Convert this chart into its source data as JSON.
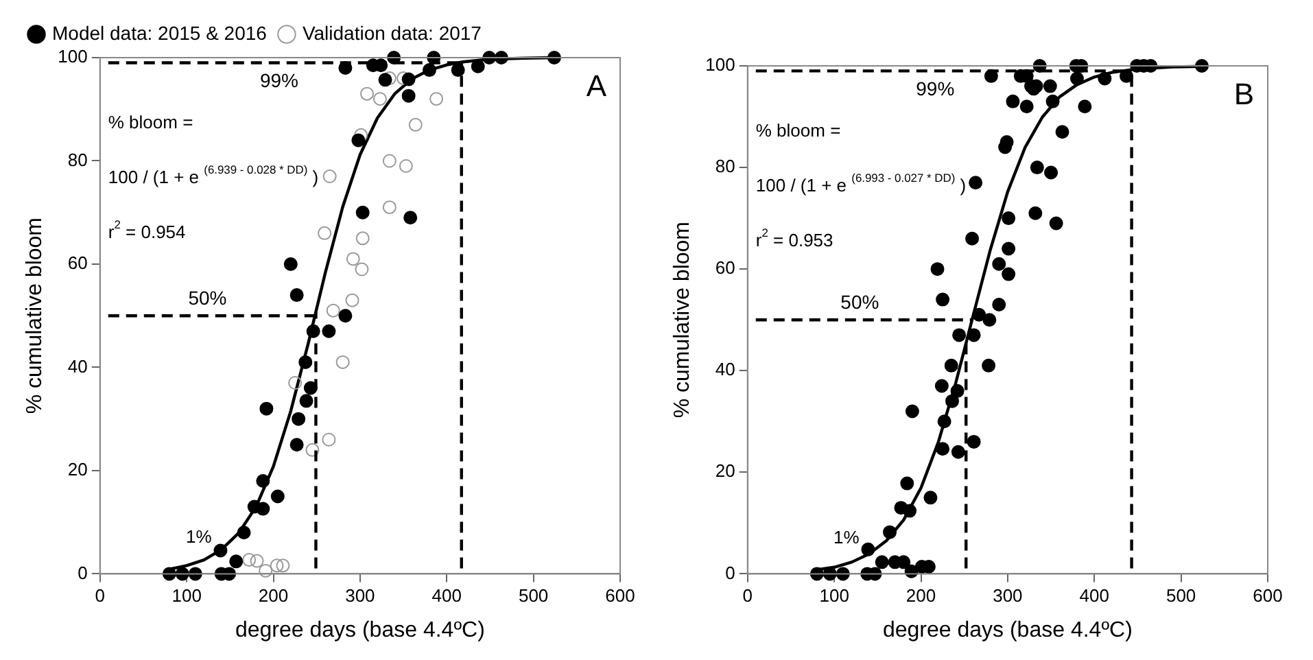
{
  "chart_data": [
    {
      "type": "scatter",
      "xlabel": "degree days (base 4.4ºC)",
      "ylabel": "% cumulative bloom",
      "xlim": [
        0,
        600
      ],
      "ylim": [
        0,
        100
      ],
      "xticks": [
        0,
        100,
        200,
        300,
        400,
        500,
        600
      ],
      "yticks": [
        0,
        20,
        40,
        60,
        80,
        100
      ],
      "grid": false,
      "legend": "top left",
      "series": [
        {
          "name": "Model data: 2015 & 2016",
          "color": "#000000",
          "marker": "circle",
          "x": [
            80,
            95,
            110,
            140,
            149,
            139,
            157,
            166,
            178,
            188,
            188,
            192,
            205,
            220,
            227,
            229,
            227,
            238,
            237,
            243,
            246,
            264,
            283,
            298,
            303,
            283,
            315,
            324,
            329,
            339,
            356,
            356,
            358,
            385,
            380,
            413,
            436,
            449,
            463,
            524
          ],
          "values": [
            0,
            0,
            0,
            0,
            0,
            4.5,
            2.4,
            8,
            13,
            18,
            12.6,
            32,
            15,
            60,
            54,
            30,
            25,
            33.5,
            41,
            36,
            47,
            47,
            50,
            84,
            70,
            98,
            98.5,
            98.5,
            95.7,
            100,
            95.8,
            92.6,
            69,
            100,
            97.6,
            97.6,
            98.3,
            100,
            100,
            100
          ]
        },
        {
          "name": "Validation data: 2017",
          "color": "#9a9a9a",
          "marker": "circle",
          "x": [
            172,
            181,
            191,
            204,
            211,
            225,
            245,
            264,
            259,
            265,
            269,
            280,
            291,
            292,
            302,
            303,
            301,
            308,
            323,
            334,
            334,
            334,
            353,
            350,
            364,
            388
          ],
          "values": [
            2.7,
            2.5,
            0.6,
            1.6,
            1.6,
            37,
            24,
            26,
            66,
            77,
            51,
            41,
            53,
            61,
            59,
            65,
            85,
            93,
            92,
            96,
            80,
            71,
            79,
            96,
            87,
            92
          ]
        },
        {
          "type": "line",
          "color": "#000000",
          "line_style": "solid",
          "marker": "none",
          "x": [
            80,
            100,
            120,
            140,
            160,
            180,
            200,
            220,
            240,
            260,
            280,
            300,
            320,
            340,
            360,
            380,
            400,
            420,
            450,
            490,
            525
          ],
          "values": [
            0.9,
            1.6,
            2.7,
            4.7,
            7.9,
            13.0,
            20.8,
            31.5,
            44.5,
            58.4,
            71.1,
            81.2,
            88.3,
            93.0,
            95.9,
            97.6,
            98.6,
            99.2,
            99.7,
            99.9,
            100.0
          ]
        }
      ],
      "ref_lines": [
        {
          "axis": "y",
          "value": 99,
          "label": "99%"
        },
        {
          "axis": "y",
          "value": 50,
          "label": "50%"
        },
        {
          "axis": "x",
          "value": 249
        },
        {
          "axis": "x",
          "value": 417
        }
      ],
      "annotations": [
        "% bloom =",
        "100 / (1 + e $^{(6.939 - 0.028 * DD)}$ )",
        "r$^{2}$ = 0.954",
        "1%",
        "A"
      ]
    },
    {
      "type": "scatter",
      "xlabel": "degree days (base 4.4ºC)",
      "ylabel": "% cumulative bloom",
      "xlim": [
        0,
        600
      ],
      "ylim": [
        0,
        100
      ],
      "xticks": [
        0,
        100,
        200,
        300,
        400,
        500,
        600
      ],
      "yticks": [
        0,
        20,
        40,
        60,
        80,
        100
      ],
      "grid": false,
      "series": [
        {
          "color": "#000000",
          "marker": "circle",
          "x": [
            80,
            95,
            110,
            138,
            147,
            139,
            155,
            170,
            180,
            189,
            201,
            209,
            164,
            177,
            184,
            187,
            190,
            211,
            219,
            225,
            224,
            225,
            227,
            236,
            235,
            242,
            243,
            244,
            261,
            261,
            267,
            259,
            263,
            279,
            278,
            290,
            290,
            281,
            301,
            301,
            301,
            297,
            299,
            306,
            315,
            322,
            322,
            327,
            330,
            333,
            337,
            349,
            352,
            363,
            334,
            350,
            332,
            356,
            379,
            385,
            380,
            389,
            412,
            437,
            449,
            457,
            465,
            524
          ],
          "values": [
            0,
            0,
            0,
            0,
            0,
            4.8,
            2.3,
            2.3,
            2.3,
            0.5,
            1.4,
            1.4,
            8.2,
            13,
            17.8,
            12.4,
            32,
            15,
            60,
            54,
            37,
            24.6,
            30,
            34,
            41,
            36,
            24,
            47,
            47,
            26,
            51,
            66,
            77,
            50,
            41,
            53,
            61,
            98,
            59,
            64,
            70,
            84,
            85,
            93,
            98,
            98,
            92,
            96,
            95.5,
            96,
            100,
            96,
            93,
            87,
            80,
            79,
            71,
            69,
            100,
            100,
            97.5,
            92,
            97.5,
            98,
            100,
            100,
            100,
            100
          ]
        },
        {
          "type": "line",
          "color": "#000000",
          "line_style": "solid",
          "marker": "none",
          "x": [
            80,
            100,
            120,
            140,
            160,
            180,
            200,
            220,
            240,
            260,
            280,
            300,
            320,
            340,
            360,
            380,
            400,
            420,
            450,
            490,
            525
          ],
          "values": [
            0.8,
            1.3,
            2.3,
            3.9,
            6.5,
            10.6,
            16.9,
            25.9,
            37.5,
            50.7,
            63.8,
            75.2,
            83.9,
            89.9,
            93.9,
            96.3,
            97.8,
            98.7,
            99.4,
            99.8,
            99.9
          ]
        }
      ],
      "ref_lines": [
        {
          "axis": "y",
          "value": 99,
          "label": "99%"
        },
        {
          "axis": "y",
          "value": 50,
          "label": "50%"
        },
        {
          "axis": "x",
          "value": 252
        },
        {
          "axis": "x",
          "value": 443
        }
      ],
      "annotations": [
        "% bloom =",
        "100 / (1 + e $^{(6.993 - 0.027 * DD)}$ )",
        "r$^{2}$ = 0.953",
        "1%",
        "B"
      ]
    }
  ]
}
